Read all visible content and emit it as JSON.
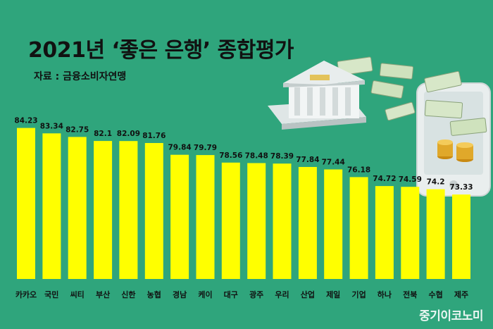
{
  "title": "2021년 ‘좋은 은행’ 종합평가",
  "subtitle": "자료 : 금융소비자연맹",
  "watermark": "중기이코노미",
  "colors": {
    "background": "#2fa57c",
    "bar": "#ffff00",
    "text": "#111111"
  },
  "illustration": {
    "icons": [
      "bank-building-icon",
      "money-bills-icon",
      "smartphone-icon",
      "coin-stack-icon"
    ]
  },
  "chart_data": {
    "type": "bar",
    "title": "2021년 ‘좋은 은행’ 종합평가",
    "xlabel": "",
    "ylabel": "",
    "grid": false,
    "categories": [
      "카카오",
      "국민",
      "씨티",
      "부산",
      "신한",
      "농협",
      "경남",
      "케이",
      "대구",
      "광주",
      "우리",
      "산업",
      "제일",
      "기업",
      "하나",
      "전북",
      "수협",
      "제주"
    ],
    "values": [
      84.23,
      83.34,
      82.75,
      82.1,
      82.09,
      81.76,
      79.84,
      79.79,
      78.56,
      78.48,
      78.39,
      77.84,
      77.44,
      76.18,
      74.72,
      74.59,
      74.2,
      73.33
    ],
    "value_labels": [
      "84.23",
      "83.34",
      "82.75",
      "82.1",
      "82.09",
      "81.76",
      "79.84",
      "79.79",
      "78.56",
      "78.48",
      "78.39",
      "77.84",
      "77.44",
      "76.18",
      "74.72",
      "74.59",
      "74.2",
      "73.33"
    ],
    "ylim": [
      59.5,
      85.8
    ]
  }
}
